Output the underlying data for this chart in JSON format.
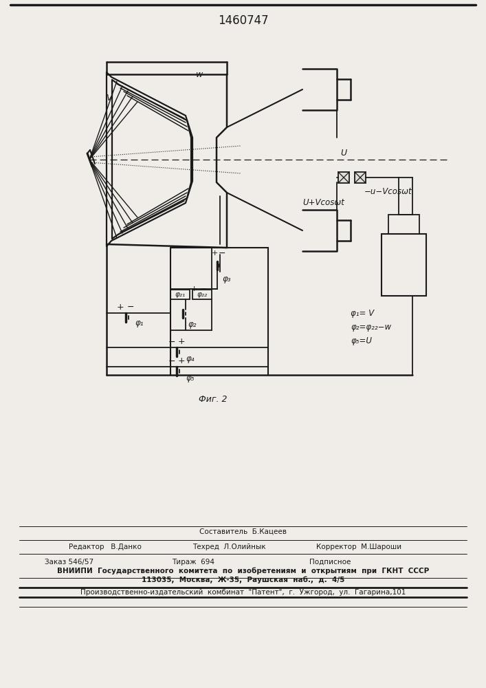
{
  "title": "1460747",
  "fig_label": "Фиг. 2",
  "bg": "#f0ede8",
  "lc": "#1a1a1a",
  "footer": [
    "Составитель  Б.Кацеев",
    "Редактор   В.Данко",
    "Техред  Л.Олийнык",
    "Корректор  М.Шароши",
    "Заказ 546/57",
    "Тираж  694",
    "Подписное",
    "ВНИИПИ  Государственного  комитета  по  изобретениям  и  открытиям  при  ГКНТ  СССР",
    "113035,  Москва,  Ж-35,  Раушская  наб.,  д.  4/5",
    "Производственно-издательский  комбинат  \"Патент\",  г.  Ужгород,  ул.  Гагарина,101"
  ]
}
